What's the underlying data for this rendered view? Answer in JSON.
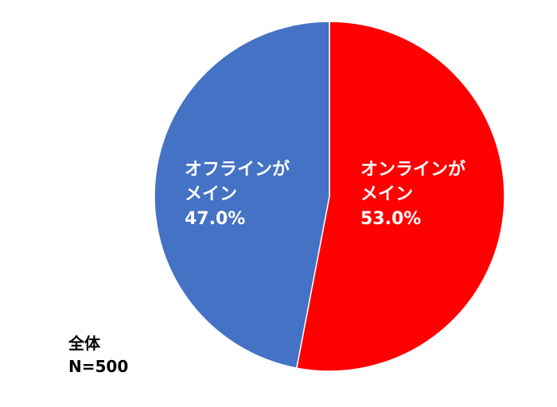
{
  "chart_data": {
    "type": "pie",
    "categories": [
      "オンラインが\nメイン",
      "オフラインが\nメイン"
    ],
    "values": [
      53,
      47
    ],
    "value_labels": [
      "53.0%",
      "47.0%"
    ],
    "colors": [
      "#ff0000",
      "#4472c4"
    ],
    "annotation": "全体\nN=500"
  }
}
